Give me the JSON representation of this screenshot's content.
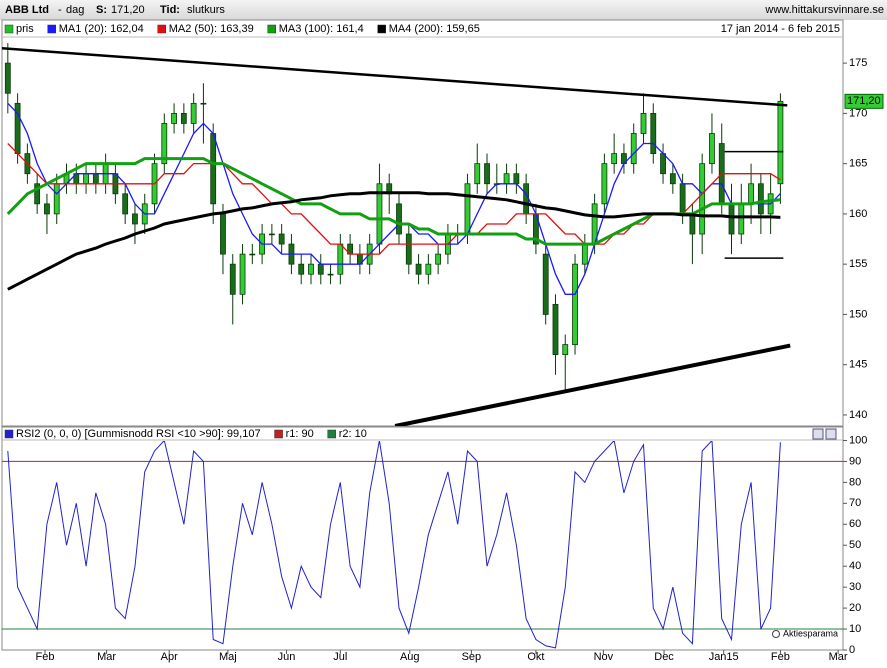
{
  "header": {
    "title": "ABB Ltd",
    "title_separator": "-",
    "interval": "dag",
    "price_label": "S:",
    "price": "171,20",
    "mode_label": "Tid:",
    "mode": "slutkurs",
    "site": "www.hittakursvinnare.se"
  },
  "chart_data": [
    {
      "type": "candlestick",
      "name": "pris",
      "color": "#22c022",
      "up_color": "#33cc33",
      "down_color": "#1a6e1a",
      "date_range": "17 jan 2014 - 6 feb 2015",
      "last_value_label": "171,20",
      "open": [
        175,
        171,
        166,
        163,
        161,
        160,
        163,
        164,
        163,
        164,
        163,
        164,
        162,
        160,
        159,
        161,
        165,
        169,
        170,
        169,
        171,
        168,
        160,
        155,
        152,
        156,
        156,
        158,
        158,
        157,
        155,
        154,
        155,
        154,
        154,
        157,
        156,
        155,
        157,
        163,
        161,
        158,
        155,
        154,
        155,
        156,
        158,
        158,
        163,
        165,
        163,
        163,
        164,
        163,
        160,
        156,
        151,
        146,
        147,
        155,
        157,
        161,
        165,
        166,
        165,
        168,
        170,
        166,
        164,
        163,
        160,
        158,
        165,
        167,
        161,
        158,
        161,
        163,
        160,
        163
      ],
      "high": [
        177,
        172,
        167,
        164,
        162,
        164,
        165,
        165,
        165,
        165,
        166,
        165,
        163,
        161,
        162,
        166,
        170,
        171,
        171,
        172,
        173,
        169,
        161,
        156,
        157,
        157,
        159,
        159,
        159,
        158,
        156,
        156,
        156,
        155,
        158,
        158,
        157,
        158,
        165,
        164,
        162,
        159,
        156,
        156,
        157,
        159,
        159,
        164,
        167,
        166,
        165,
        165,
        165,
        164,
        161,
        157,
        152,
        148,
        156,
        158,
        162,
        166,
        168,
        167,
        169,
        172,
        171,
        167,
        165,
        164,
        161,
        166,
        170,
        169,
        163,
        163,
        165,
        164,
        164,
        172
      ],
      "low": [
        170,
        165,
        163,
        160,
        158,
        159,
        162,
        162,
        162,
        162,
        162,
        161,
        159,
        157,
        158,
        160,
        164,
        168,
        168,
        168,
        167,
        159,
        154,
        149,
        151,
        155,
        155,
        157,
        156,
        154,
        153,
        153,
        153,
        153,
        153,
        155,
        154,
        154,
        156,
        160,
        157,
        154,
        153,
        153,
        154,
        155,
        157,
        157,
        162,
        162,
        162,
        162,
        162,
        159,
        156,
        149,
        144,
        142.5,
        146,
        154,
        156,
        160,
        164,
        164,
        164,
        167,
        165,
        163,
        162,
        159,
        155,
        156,
        164,
        160,
        156,
        157,
        159,
        158,
        158,
        161
      ],
      "close": [
        172,
        166,
        164,
        161,
        160,
        163,
        164,
        163,
        164,
        163,
        165,
        162,
        160,
        159,
        161,
        165,
        169,
        170,
        169,
        171,
        171,
        161,
        156,
        152,
        156,
        156,
        158,
        158,
        157,
        155,
        154,
        155,
        154,
        154,
        157,
        156,
        155,
        157,
        163,
        162,
        158,
        155,
        154,
        155,
        156,
        158,
        158,
        163,
        165,
        163,
        163,
        164,
        163,
        160,
        157,
        150,
        146,
        147,
        155,
        157,
        161,
        165,
        166,
        165,
        168,
        170,
        166,
        164,
        163,
        160,
        158,
        165,
        168,
        161,
        158,
        161,
        163,
        160,
        162,
        171.2
      ],
      "series": [
        {
          "name": "MA1 (20): 162,04",
          "color": "#1a1aff",
          "values": [
            171,
            170,
            168,
            165,
            163,
            162,
            163,
            164,
            164,
            164,
            164,
            164,
            163,
            161,
            160,
            160,
            162,
            164,
            166,
            168,
            169,
            168,
            165,
            162,
            160,
            158,
            157,
            157,
            156,
            156,
            156,
            156,
            155,
            155,
            155,
            155,
            155,
            156,
            157,
            158,
            159,
            159,
            158,
            158,
            157,
            157,
            157,
            158,
            160,
            162,
            163,
            163,
            163,
            162,
            160,
            157,
            154,
            152,
            152,
            154,
            157,
            160,
            163,
            165,
            166,
            167,
            167,
            166,
            165,
            163,
            163,
            162,
            163,
            163,
            161,
            161,
            161,
            161,
            161,
            162.04
          ]
        },
        {
          "name": "MA2 (50): 163,39",
          "color": "#e01010",
          "values": [
            167,
            166,
            165,
            164,
            163,
            163,
            163,
            163,
            163,
            163,
            163,
            163,
            163,
            163,
            163,
            163,
            164,
            164,
            164,
            165,
            165,
            165,
            165,
            164,
            163,
            163,
            162,
            161,
            161,
            160,
            160,
            159,
            158,
            157,
            157,
            156,
            156,
            156,
            156,
            157,
            157,
            157,
            157,
            157,
            157,
            157,
            158,
            158,
            158,
            159,
            159,
            159,
            160,
            160,
            160,
            160,
            159,
            158,
            158,
            157,
            157,
            157,
            158,
            158,
            159,
            159,
            160,
            160,
            160,
            160,
            161,
            162,
            163,
            164,
            164,
            164,
            164,
            164,
            164,
            163.39
          ]
        },
        {
          "name": "MA3 (100): 161,4",
          "color": "#10a010",
          "values": [
            160,
            161,
            162,
            162.5,
            163,
            163.5,
            164,
            164.5,
            165,
            165,
            165,
            165,
            165,
            165,
            165.5,
            165.5,
            165.5,
            165.5,
            165.5,
            165.5,
            165.5,
            165,
            165,
            164.5,
            164,
            163.5,
            163,
            162.5,
            162,
            161.5,
            161,
            161,
            161,
            160.5,
            160,
            160,
            160,
            159.5,
            159.5,
            159.5,
            159,
            159,
            158.5,
            158.5,
            158,
            158,
            158,
            158,
            158,
            158,
            158,
            158,
            158,
            157.5,
            157.5,
            157,
            157,
            157,
            157,
            157,
            157,
            157.5,
            158,
            158.5,
            159,
            159.5,
            160,
            160,
            160,
            160,
            160,
            160.5,
            161,
            161,
            161,
            161,
            161,
            161.2,
            161.3,
            161.4
          ]
        },
        {
          "name": "MA4 (200): 159,65",
          "color": "#000000",
          "values": [
            152.5,
            153,
            153.5,
            154,
            154.5,
            155,
            155.5,
            156,
            156.3,
            156.6,
            157,
            157.3,
            157.6,
            158,
            158.3,
            158.6,
            159,
            159.2,
            159.4,
            159.6,
            159.8,
            160,
            160.1,
            160.3,
            160.5,
            160.6,
            160.8,
            161,
            161.1,
            161.2,
            161.4,
            161.5,
            161.6,
            161.8,
            161.9,
            162,
            162,
            162.1,
            162.1,
            162.1,
            162.1,
            162.1,
            162.1,
            162,
            162,
            162,
            161.9,
            161.8,
            161.7,
            161.6,
            161.5,
            161.4,
            161.2,
            161,
            160.8,
            160.6,
            160.5,
            160.3,
            160.1,
            159.9,
            159.8,
            159.7,
            159.7,
            159.8,
            159.9,
            160,
            160,
            160,
            160,
            159.9,
            159.9,
            159.8,
            159.8,
            159.8,
            159.7,
            159.7,
            159.7,
            159.7,
            159.7,
            159.65
          ]
        }
      ],
      "trendlines": [
        {
          "x": [
            -0.8,
            79.7
          ],
          "y": [
            176.5,
            170.8
          ]
        },
        {
          "x": [
            39.6,
            80.0
          ],
          "y": [
            138.9,
            146.9
          ]
        },
        {
          "x": [
            73.3,
            79.3
          ],
          "y": [
            166.2,
            166.2
          ]
        },
        {
          "x": [
            73.3,
            79.3
          ],
          "y": [
            155.6,
            155.6
          ]
        }
      ],
      "xlim": [
        -0.8,
        85.4
      ],
      "xticks": [
        {
          "value": 3.8,
          "label": "Feb"
        },
        {
          "value": 10.1,
          "label": "Mar"
        },
        {
          "value": 16.5,
          "label": "Apr"
        },
        {
          "value": 22.5,
          "label": "Maj"
        },
        {
          "value": 28.5,
          "label": "Jun"
        },
        {
          "value": 34.0,
          "label": "Jul"
        },
        {
          "value": 41.1,
          "label": "Aug"
        },
        {
          "value": 47.4,
          "label": "Sep"
        },
        {
          "value": 54.0,
          "label": "Okt"
        },
        {
          "value": 60.9,
          "label": "Nov"
        },
        {
          "value": 67.1,
          "label": "Dec"
        },
        {
          "value": 73.2,
          "label": "Jan15"
        },
        {
          "value": 79.0,
          "label": "Feb"
        },
        {
          "value": 84.9,
          "label": "Mar"
        }
      ],
      "ylim": [
        138.9,
        177.5
      ],
      "yticks": [
        140,
        145,
        150,
        155,
        160,
        165,
        170,
        175
      ]
    },
    {
      "type": "line",
      "name": "RSI2 (0, 0, 0) [Gummisnodd RSI <10 >90]: 99,107",
      "color": "#2222cc",
      "values": [
        95,
        30,
        20,
        10,
        60,
        80,
        50,
        70,
        40,
        75,
        60,
        20,
        15,
        40,
        85,
        95,
        100,
        80,
        60,
        95,
        90,
        5,
        3,
        40,
        70,
        55,
        80,
        60,
        35,
        20,
        40,
        30,
        25,
        60,
        80,
        40,
        30,
        75,
        100,
        70,
        20,
        8,
        30,
        55,
        70,
        85,
        60,
        95,
        90,
        40,
        55,
        75,
        50,
        15,
        5,
        2,
        1,
        30,
        85,
        80,
        90,
        95,
        100,
        75,
        90,
        98,
        20,
        10,
        30,
        8,
        3,
        95,
        100,
        15,
        5,
        60,
        80,
        10,
        20,
        99.107
      ],
      "ref_lines": [
        {
          "name": "r1: 90",
          "value": 90,
          "color": "#c02020"
        },
        {
          "name": "r2: 10",
          "value": 10,
          "color": "#208040"
        }
      ],
      "annotation": "Aktiesparama",
      "ylim": [
        0,
        105
      ],
      "yticks": [
        0,
        10,
        20,
        30,
        40,
        50,
        60,
        70,
        80,
        90,
        100
      ]
    }
  ]
}
